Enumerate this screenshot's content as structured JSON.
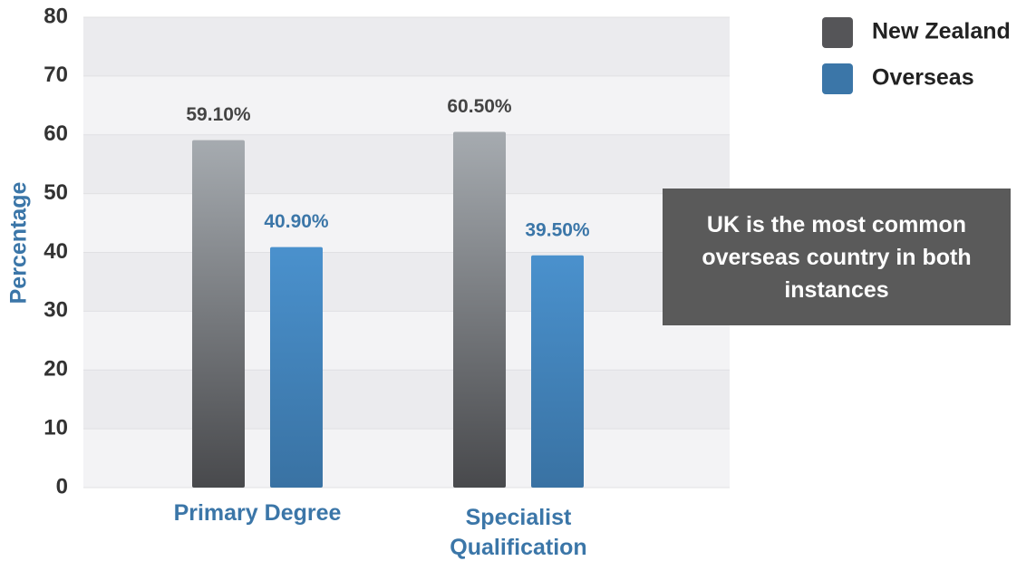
{
  "chart_data": {
    "type": "bar",
    "y_label": "Percentage",
    "categories": [
      "Primary Degree",
      "Specialist Qualification"
    ],
    "series": [
      {
        "name": "New Zealand",
        "color": "#555558",
        "values": [
          59.1,
          60.5
        ],
        "value_labels": [
          "59.10%",
          "60.50%"
        ]
      },
      {
        "name": "Overseas",
        "color": "#3b76a8",
        "values": [
          40.9,
          39.5
        ],
        "value_labels": [
          "40.90%",
          "39.50%"
        ]
      }
    ],
    "ylim": [
      0,
      80
    ],
    "yticks": [
      0,
      10,
      20,
      30,
      40,
      50,
      60,
      70,
      80
    ],
    "grid": true,
    "legend": "top-right",
    "annotation": "UK is the most common overseas country in both instances"
  }
}
